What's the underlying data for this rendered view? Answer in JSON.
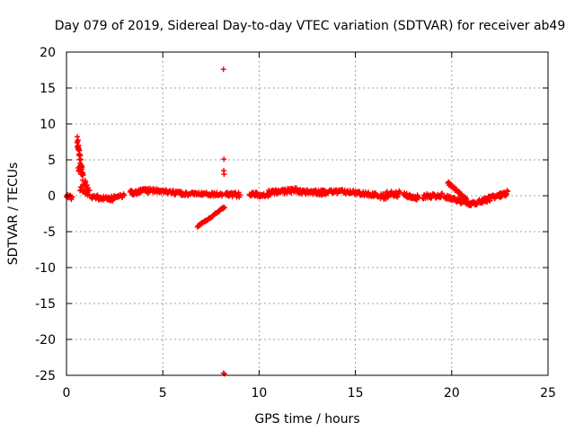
{
  "chart_data": {
    "type": "scatter",
    "title": "Day 079 of 2019, Sidereal Day-to-day VTEC variation (SDTVAR) for receiver ab49",
    "xlabel": "GPS time / hours",
    "ylabel": "SDTVAR / TECUs",
    "xlim": [
      0,
      25
    ],
    "ylim": [
      -25,
      20
    ],
    "xticks": [
      0,
      5,
      10,
      15,
      20,
      25
    ],
    "yticks": [
      -25,
      -20,
      -15,
      -10,
      -5,
      0,
      5,
      10,
      15,
      20
    ],
    "grid": true,
    "marker": "+",
    "series": [
      {
        "name": "SDTVAR",
        "color": "#ff0000",
        "segments": [
          {
            "x0": 0.0,
            "x1": 0.3,
            "y0": 0.1,
            "y1": -0.3,
            "n": 14,
            "noise": 0.3
          },
          {
            "x0": 0.55,
            "x1": 0.85,
            "y0": 7.8,
            "y1": 2.5,
            "n": 40,
            "noise": 0.8
          },
          {
            "x0": 0.6,
            "x1": 1.2,
            "y0": 4.0,
            "y1": 0.2,
            "n": 24,
            "noise": 0.6
          },
          {
            "x0": 0.7,
            "x1": 1.1,
            "y0": 1.0,
            "y1": 0.3,
            "n": 12,
            "noise": 0.4
          },
          {
            "x0": 1.3,
            "x1": 2.4,
            "y0": -0.2,
            "y1": -0.4,
            "n": 40,
            "noise": 0.35
          },
          {
            "x0": 2.4,
            "x1": 3.0,
            "y0": -0.3,
            "y1": 0.0,
            "n": 20,
            "noise": 0.3
          },
          {
            "x0": 3.3,
            "x1": 4.2,
            "y0": 0.4,
            "y1": 0.7,
            "n": 36,
            "noise": 0.35
          },
          {
            "x0": 4.2,
            "x1": 6.0,
            "y0": 0.8,
            "y1": 0.3,
            "n": 64,
            "noise": 0.3
          },
          {
            "x0": 6.0,
            "x1": 8.1,
            "y0": 0.3,
            "y1": 0.2,
            "n": 66,
            "noise": 0.25
          },
          {
            "x0": 6.8,
            "x1": 8.2,
            "y0": -4.3,
            "y1": -1.6,
            "n": 44,
            "noise": 0.12
          },
          {
            "x0": 8.25,
            "x1": 9.0,
            "y0": 0.3,
            "y1": 0.1,
            "n": 24,
            "noise": 0.35
          },
          {
            "x0": 9.5,
            "x1": 10.5,
            "y0": 0.2,
            "y1": 0.1,
            "n": 36,
            "noise": 0.3
          },
          {
            "x0": 10.5,
            "x1": 12.0,
            "y0": 0.4,
            "y1": 0.8,
            "n": 56,
            "noise": 0.35
          },
          {
            "x0": 12.0,
            "x1": 13.5,
            "y0": 0.6,
            "y1": 0.4,
            "n": 56,
            "noise": 0.35
          },
          {
            "x0": 13.5,
            "x1": 15.0,
            "y0": 0.6,
            "y1": 0.5,
            "n": 50,
            "noise": 0.3
          },
          {
            "x0": 15.0,
            "x1": 16.2,
            "y0": 0.4,
            "y1": 0.1,
            "n": 40,
            "noise": 0.3
          },
          {
            "x0": 16.3,
            "x1": 17.3,
            "y0": 0.0,
            "y1": 0.2,
            "n": 36,
            "noise": 0.5
          },
          {
            "x0": 17.5,
            "x1": 18.3,
            "y0": 0.2,
            "y1": -0.3,
            "n": 30,
            "noise": 0.35
          },
          {
            "x0": 18.5,
            "x1": 19.5,
            "y0": -0.1,
            "y1": 0.0,
            "n": 34,
            "noise": 0.35
          },
          {
            "x0": 19.6,
            "x1": 20.9,
            "y0": -0.1,
            "y1": -1.1,
            "n": 50,
            "noise": 0.3
          },
          {
            "x0": 19.8,
            "x1": 20.8,
            "y0": 1.8,
            "y1": -0.6,
            "n": 36,
            "noise": 0.2
          },
          {
            "x0": 20.9,
            "x1": 21.3,
            "y0": -1.2,
            "y1": -1.0,
            "n": 16,
            "noise": 0.3
          },
          {
            "x0": 21.4,
            "x1": 22.9,
            "y0": -0.9,
            "y1": 0.4,
            "n": 60,
            "noise": 0.4
          }
        ],
        "points": [
          {
            "x": 8.15,
            "y": 17.6
          },
          {
            "x": 8.17,
            "y": 5.1
          },
          {
            "x": 8.16,
            "y": 3.5
          },
          {
            "x": 8.18,
            "y": 3.0
          },
          {
            "x": 8.15,
            "y": -24.7
          },
          {
            "x": 8.2,
            "y": -24.8
          }
        ]
      }
    ]
  }
}
